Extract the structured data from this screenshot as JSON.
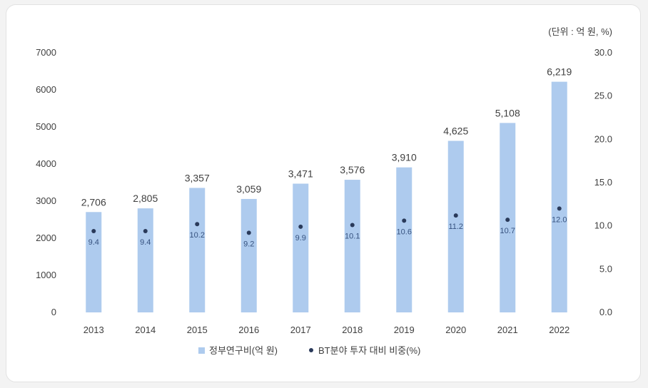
{
  "unit_note": "(단위 : 억 원, %)",
  "legend": {
    "bar_label": "정부연구비(억 원)",
    "dot_label": "BT분야 투자 대비 비중(%)"
  },
  "colors": {
    "bar": "#aecbee",
    "dot": "#2a3a5a",
    "axis_text": "#404040",
    "ratio_label": "#36527f"
  },
  "chart_data": {
    "type": "bar",
    "categories": [
      "2013",
      "2014",
      "2015",
      "2016",
      "2017",
      "2018",
      "2019",
      "2020",
      "2021",
      "2022"
    ],
    "series": [
      {
        "name": "정부연구비(억 원)",
        "values": [
          2706,
          2805,
          3357,
          3059,
          3471,
          3576,
          3910,
          4625,
          5108,
          6219
        ],
        "labels": [
          "2,706",
          "2,805",
          "3,357",
          "3,059",
          "3,471",
          "3,576",
          "3,910",
          "4,625",
          "5,108",
          "6,219"
        ],
        "axis": "left"
      },
      {
        "name": "BT분야 투자 대비 비중(%)",
        "type": "scatter",
        "values": [
          9.4,
          9.4,
          10.2,
          9.2,
          9.9,
          10.1,
          10.6,
          11.2,
          10.7,
          12.0
        ],
        "labels": [
          "9.4",
          "9.4",
          "10.2",
          "9.2",
          "9.9",
          "10.1",
          "10.6",
          "11.2",
          "10.7",
          "12.0"
        ],
        "axis": "right"
      }
    ],
    "y_left": {
      "lim": [
        0,
        7000
      ],
      "ticks": [
        "0",
        "1000",
        "2000",
        "3000",
        "4000",
        "5000",
        "6000",
        "7000"
      ]
    },
    "y_right": {
      "lim": [
        0,
        30
      ],
      "ticks": [
        "0.0",
        "5.0",
        "10.0",
        "15.0",
        "20.0",
        "25.0",
        "30.0"
      ]
    },
    "grid": false,
    "legend_position": "bottom"
  }
}
